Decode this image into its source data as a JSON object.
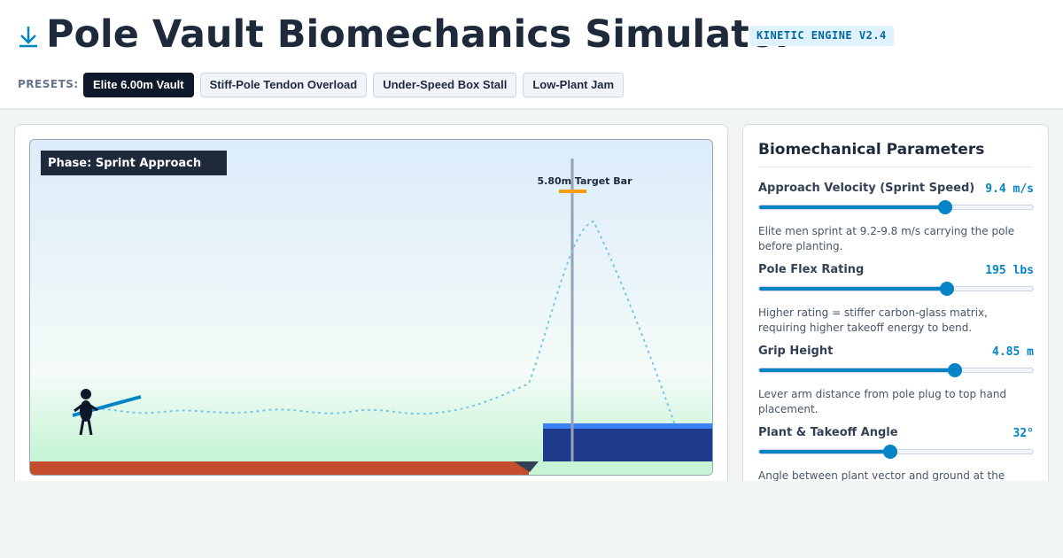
{
  "header": {
    "title": "Pole Vault Biomechanics Simulator",
    "badge": "KINETIC ENGINE V2.4"
  },
  "presets": {
    "label": "PRESETS:",
    "items": [
      "Elite 6.00m Vault",
      "Stiff-Pole Tendon Overload",
      "Under-Speed Box Stall",
      "Low-Plant Jam"
    ]
  },
  "scene": {
    "phase": "Phase: Sprint Approach",
    "bar_label": "5.80m Target Bar"
  },
  "panel": {
    "title": "Biomechanical Parameters",
    "params": [
      {
        "name": "Approach Velocity (Sprint Speed)",
        "value": "9.4 m/s",
        "description": "Elite men sprint at 9.2-9.8 m/s carrying the pole before planting."
      },
      {
        "name": "Pole Flex Rating",
        "value": "195 lbs",
        "description": "Higher rating = stiffer carbon-glass matrix, requiring higher takeoff energy to bend."
      },
      {
        "name": "Grip Height",
        "value": "4.85 m",
        "description": "Lever arm distance from pole plug to top hand placement."
      },
      {
        "name": "Plant & Takeoff Angle",
        "value": "32°",
        "description": "Angle between plant vector and ground at the moment of takeoff."
      }
    ]
  }
}
